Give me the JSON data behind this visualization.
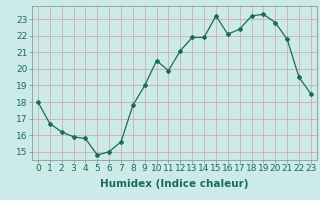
{
  "x": [
    0,
    1,
    2,
    3,
    4,
    5,
    6,
    7,
    8,
    9,
    10,
    11,
    12,
    13,
    14,
    15,
    16,
    17,
    18,
    19,
    20,
    21,
    22,
    23
  ],
  "y": [
    18.0,
    16.7,
    16.2,
    15.9,
    15.8,
    14.8,
    15.0,
    15.6,
    17.8,
    19.0,
    20.5,
    19.9,
    21.1,
    21.9,
    21.9,
    23.2,
    22.1,
    22.4,
    23.2,
    23.3,
    22.8,
    21.8,
    19.5,
    18.5
  ],
  "line_color": "#1a6b5e",
  "marker": "D",
  "marker_size": 2.0,
  "bg_color": "#cceae7",
  "grid_color": "#b0d4d0",
  "xlabel": "Humidex (Indice chaleur)",
  "xlabel_fontsize": 7.5,
  "tick_fontsize": 6.5,
  "ylabel_ticks": [
    15,
    16,
    17,
    18,
    19,
    20,
    21,
    22,
    23
  ],
  "ylim": [
    14.5,
    23.8
  ],
  "xlim": [
    -0.5,
    23.5
  ]
}
